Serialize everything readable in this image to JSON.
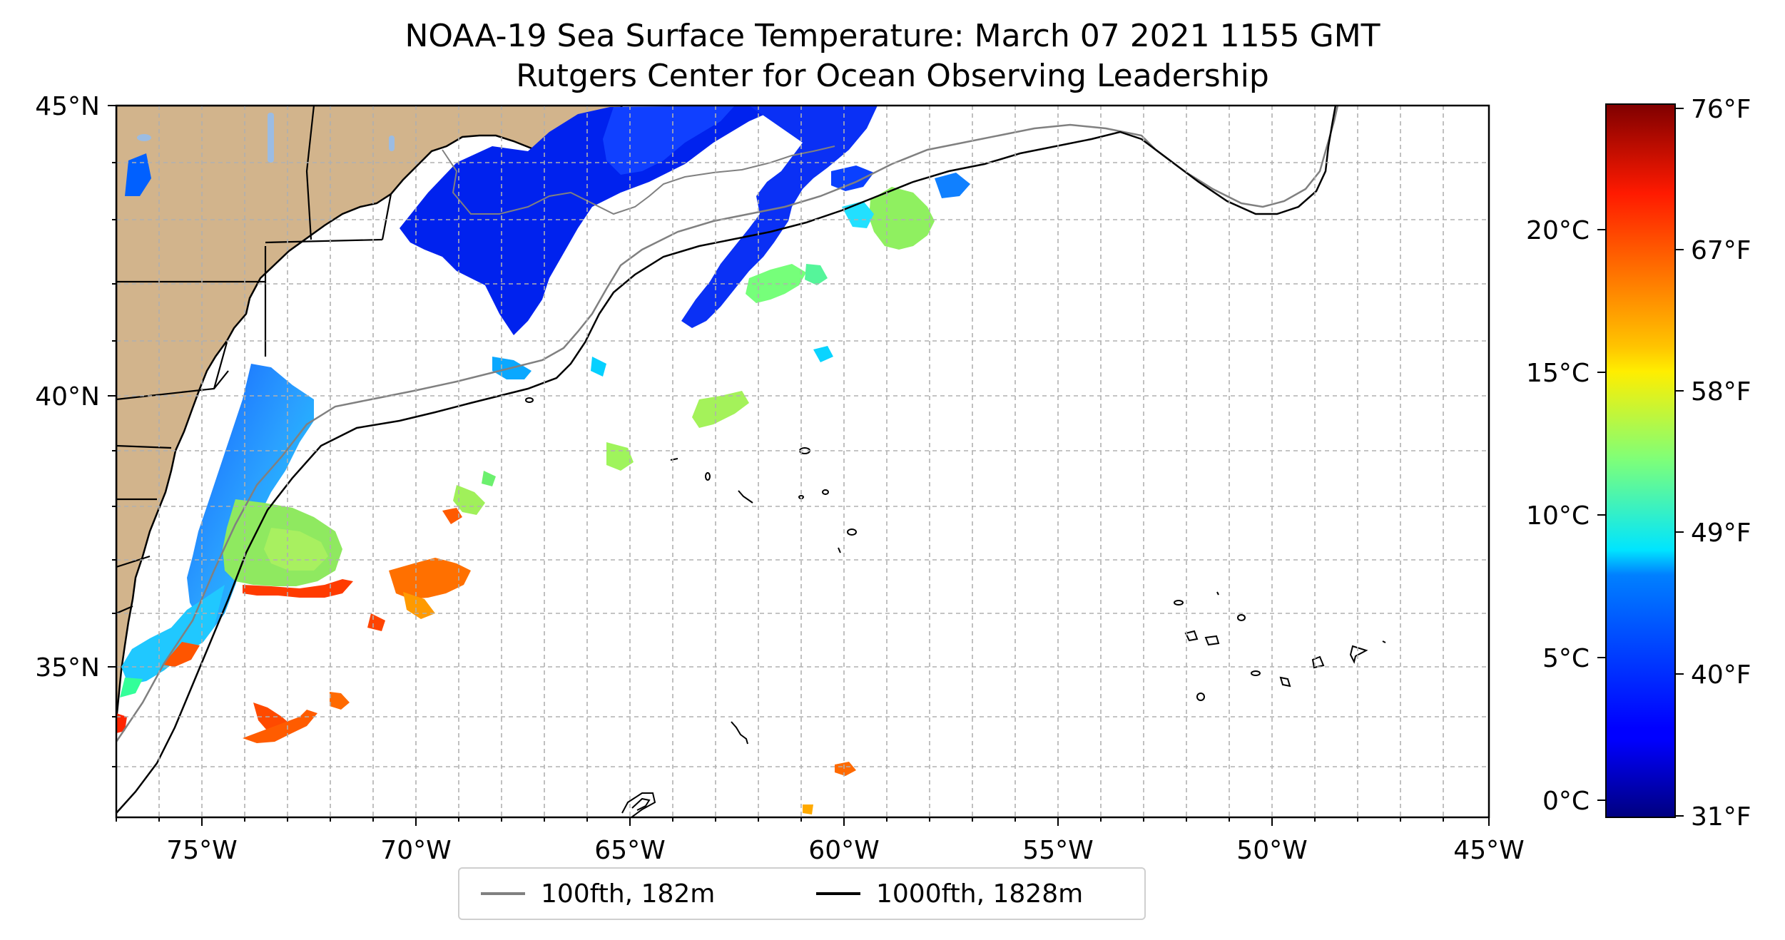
{
  "title": {
    "line1": "NOAA-19 Sea Surface Temperature: March 07 2021 1155 GMT",
    "line2": "Rutgers Center for Ocean Observing Leadership"
  },
  "map": {
    "lon_range": [
      -77,
      -45
    ],
    "lat_range": [
      32.3,
      45
    ],
    "grid": true,
    "land_color": "#d2b48c",
    "no_data_color": "#ffffff",
    "x_ticks": [
      "75°W",
      "70°W",
      "65°W",
      "60°W",
      "55°W",
      "50°W",
      "45°W"
    ],
    "y_ticks": [
      "45°N",
      "40°N",
      "35°N"
    ]
  },
  "colorbar": {
    "colormap": "jet",
    "range_c": [
      -0.6,
      24.4
    ],
    "celsius_ticks": [
      "0°C",
      "5°C",
      "10°C",
      "15°C",
      "20°C"
    ],
    "fahrenheit_ticks": [
      "31°F",
      "40°F",
      "49°F",
      "58°F",
      "67°F",
      "76°F"
    ]
  },
  "legend": {
    "position": "bottom-center",
    "items": [
      {
        "label": "100fth, 182m",
        "color": "#808080"
      },
      {
        "label": "1000fth, 1828m",
        "color": "#000000"
      }
    ]
  },
  "chart_data": {
    "type": "heatmap",
    "variable": "Sea Surface Temperature",
    "x_range": [
      -77,
      -45
    ],
    "y_range": [
      32.3,
      45
    ],
    "colorbar_range_c": [
      -0.6,
      24.4
    ],
    "regions": [
      {
        "lon": -73.3,
        "lat": 37.2,
        "sst_c": 13
      },
      {
        "lon": -72.5,
        "lat": 36.3,
        "sst_c": 20
      },
      {
        "lon": -73.3,
        "lat": 33.9,
        "sst_c": 21
      },
      {
        "lon": -68.6,
        "lat": 36.6,
        "sst_c": 20
      },
      {
        "lon": -58.7,
        "lat": 42.8,
        "sst_c": 12
      },
      {
        "lon": -61.8,
        "lat": 41.4,
        "sst_c": 11
      },
      {
        "lon": -69.0,
        "lat": 38.0,
        "sst_c": 12
      },
      {
        "lon": -74.5,
        "lat": 38.6,
        "sst_c": 6
      },
      {
        "lon": -70.0,
        "lat": 43.6,
        "sst_c": 3
      },
      {
        "lon": -66.0,
        "lat": 44.2,
        "sst_c": 2
      },
      {
        "lon": -60.0,
        "lat": 33.1,
        "sst_c": 20
      }
    ]
  }
}
